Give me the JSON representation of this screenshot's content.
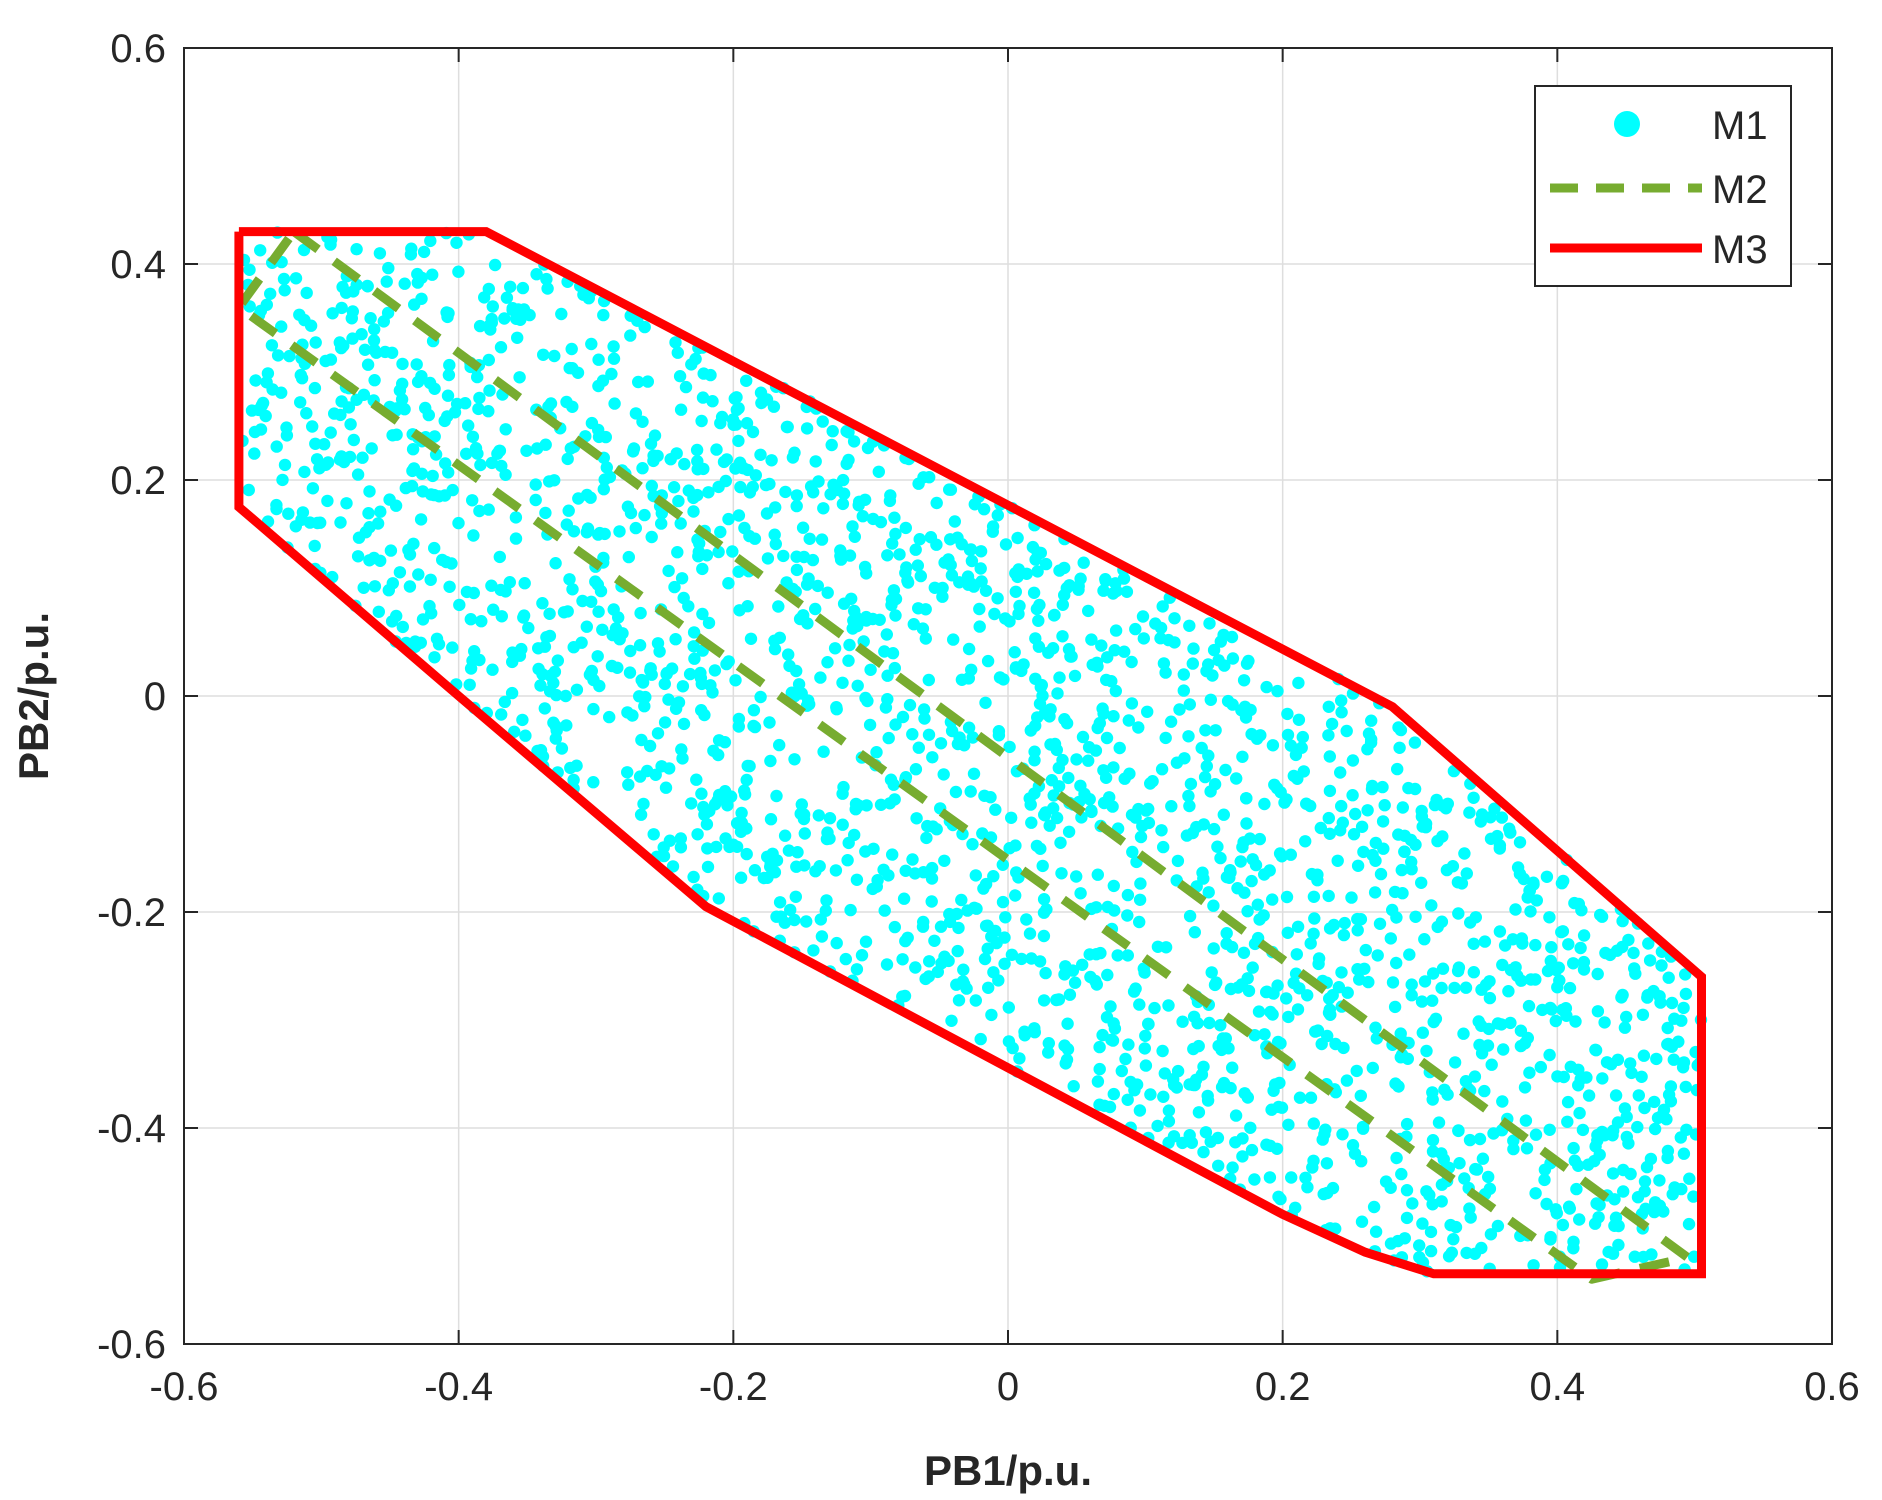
{
  "chart_data": {
    "type": "scatter",
    "xlabel": "PB1/p.u.",
    "ylabel": "PB2/p.u.",
    "xlim": [
      -0.6,
      0.6
    ],
    "ylim": [
      -0.6,
      0.6
    ],
    "xticks": [
      -0.6,
      -0.4,
      -0.2,
      0,
      0.2,
      0.4,
      0.6
    ],
    "yticks": [
      -0.6,
      -0.4,
      -0.2,
      0,
      0.2,
      0.4,
      0.6
    ],
    "xtick_labels": [
      "-0.6",
      "-0.4",
      "-0.2",
      "0",
      "0.2",
      "0.4",
      "0.6"
    ],
    "ytick_labels": [
      "-0.6",
      "-0.4",
      "-0.2",
      "0",
      "0.2",
      "0.4",
      "0.6"
    ],
    "grid": true,
    "legend_position": "top-right",
    "series": [
      {
        "name": "M1",
        "kind": "scatter",
        "color": "#00FFFF",
        "point_count": 2200,
        "region_polygon": [
          [
            -0.56,
            0.43
          ],
          [
            -0.38,
            0.43
          ],
          [
            0.28,
            -0.01
          ],
          [
            0.505,
            -0.26
          ],
          [
            0.505,
            -0.535
          ],
          [
            0.31,
            -0.535
          ],
          [
            0.26,
            -0.515
          ],
          [
            0.2,
            -0.48
          ],
          [
            -0.22,
            -0.195
          ],
          [
            -0.4,
            0.0
          ],
          [
            -0.56,
            0.175
          ]
        ]
      },
      {
        "name": "M2",
        "kind": "dashed-line",
        "color": "#77AC30",
        "points": [
          [
            -0.52,
            0.43
          ],
          [
            0.495,
            -0.52
          ],
          [
            0.425,
            -0.54
          ],
          [
            -0.56,
            0.36
          ],
          [
            -0.52,
            0.43
          ]
        ]
      },
      {
        "name": "M3",
        "kind": "solid-line",
        "color": "#FF0000",
        "points": [
          [
            -0.56,
            0.43
          ],
          [
            -0.38,
            0.43
          ],
          [
            0.28,
            -0.01
          ],
          [
            0.505,
            -0.26
          ],
          [
            0.505,
            -0.535
          ],
          [
            0.31,
            -0.535
          ],
          [
            0.26,
            -0.515
          ],
          [
            0.2,
            -0.48
          ],
          [
            -0.22,
            -0.195
          ],
          [
            -0.4,
            0.0
          ],
          [
            -0.56,
            0.175
          ],
          [
            -0.56,
            0.43
          ]
        ]
      }
    ]
  }
}
